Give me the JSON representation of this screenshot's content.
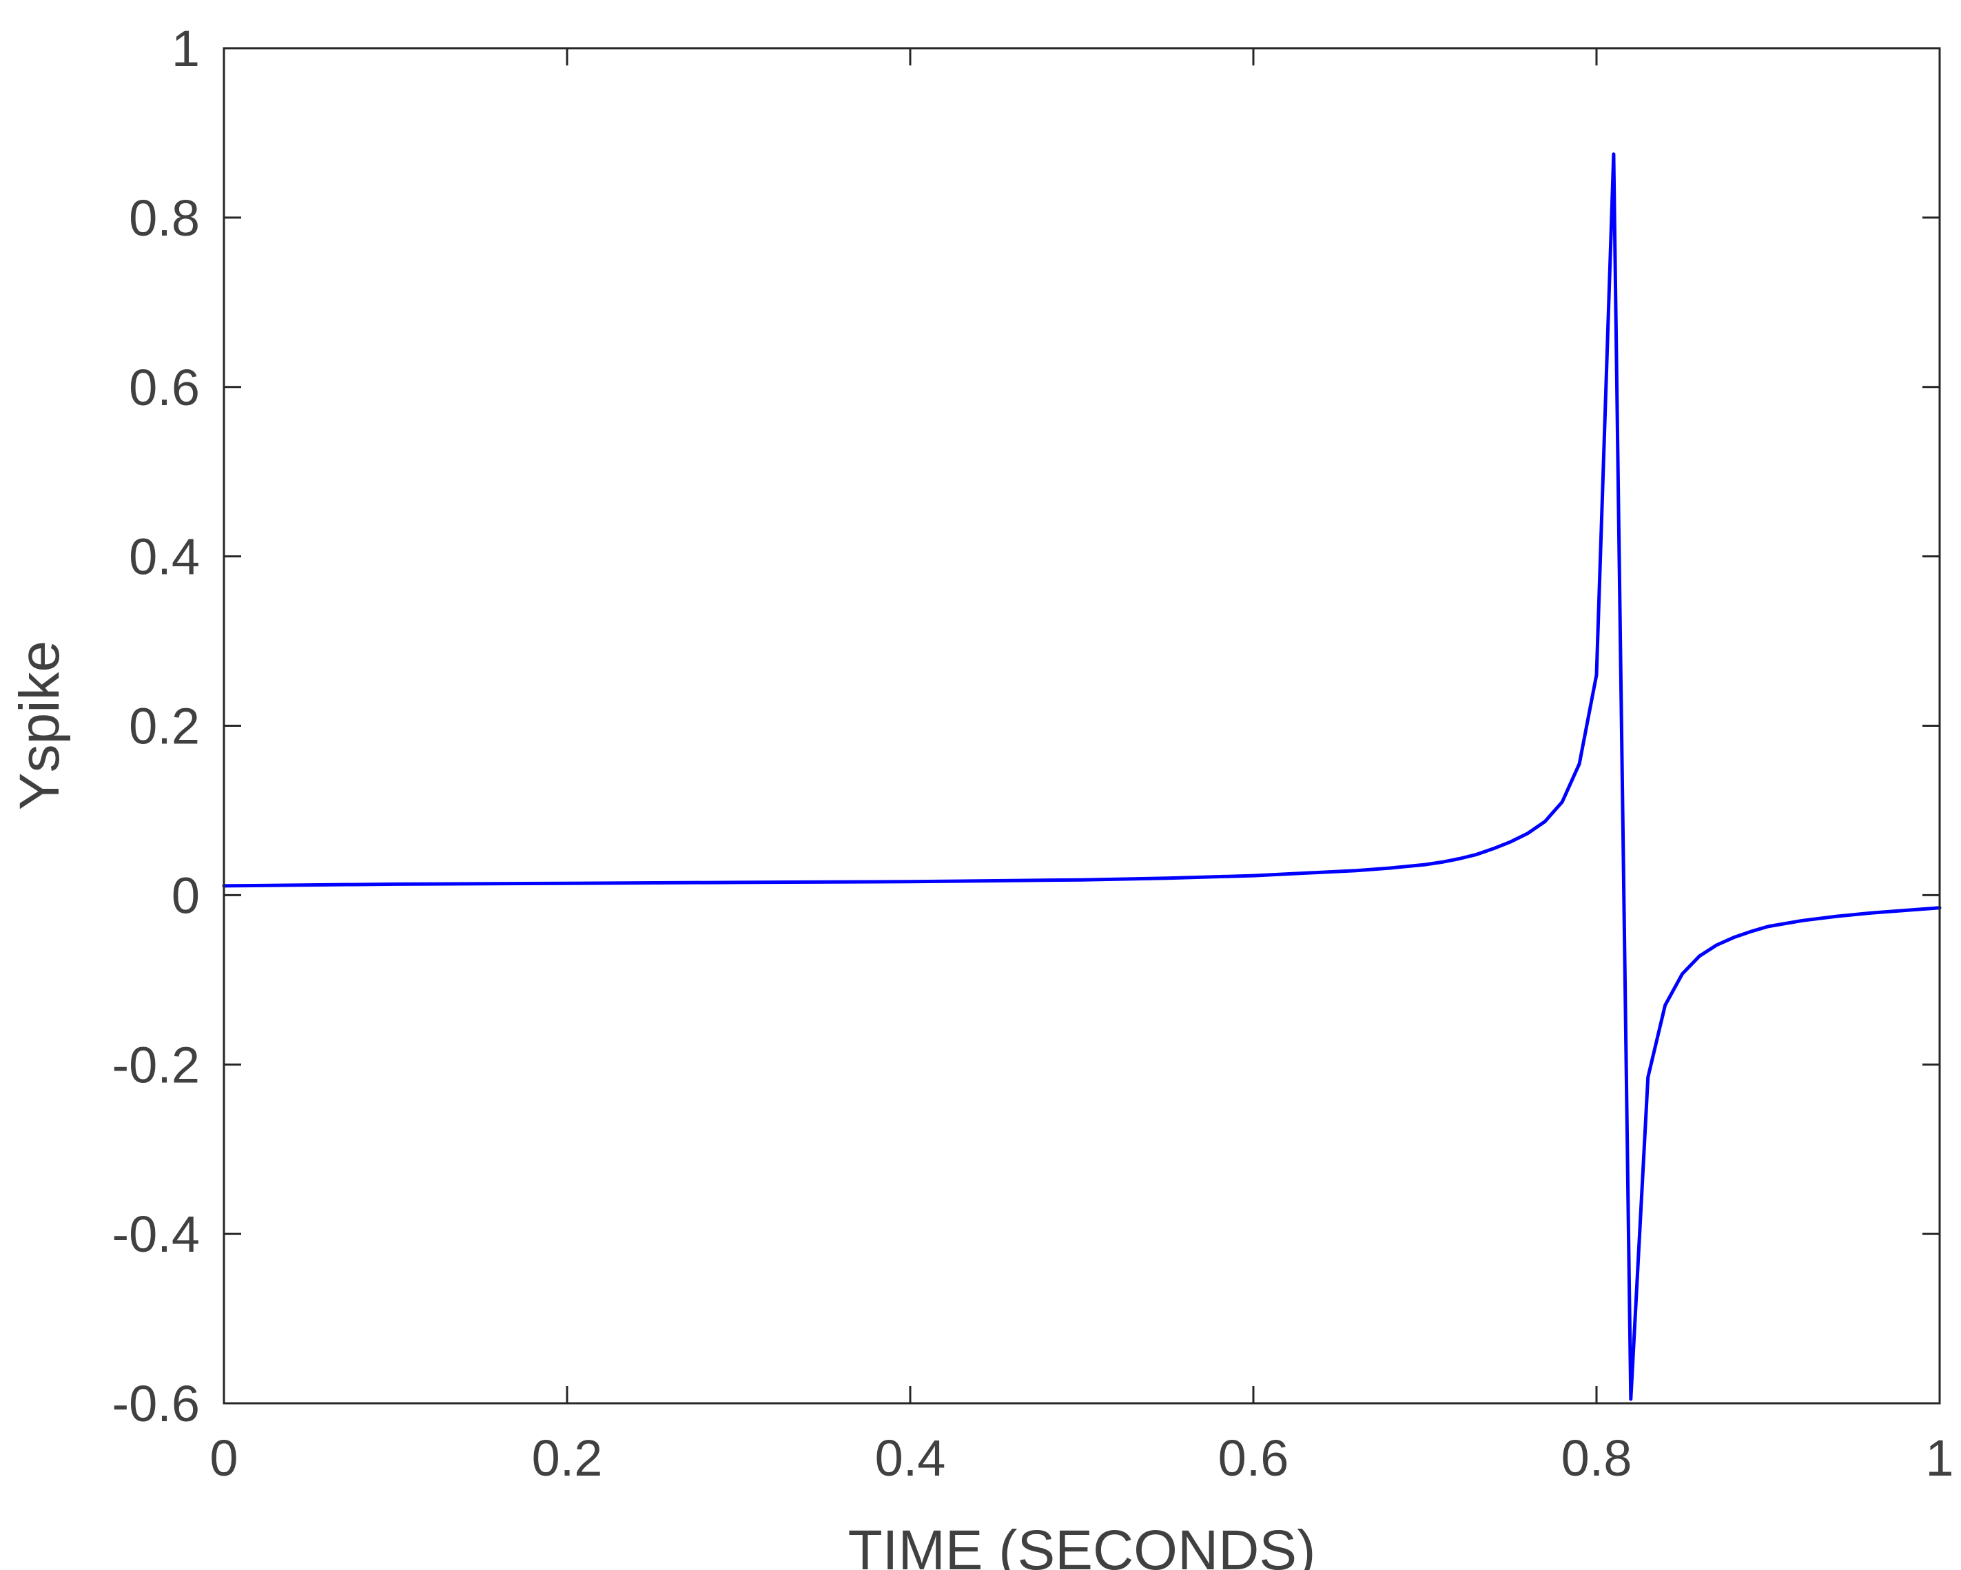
{
  "chart_data": {
    "type": "line",
    "title": "",
    "xlabel": "TIME (SECONDS)",
    "ylabel": "Yspike",
    "xlim": [
      0,
      1
    ],
    "ylim": [
      -0.6,
      1
    ],
    "xticks": [
      0,
      0.2,
      0.4,
      0.6,
      0.8,
      1
    ],
    "xtick_labels": [
      "0",
      "0.2",
      "0.4",
      "0.6",
      "0.8",
      "1"
    ],
    "yticks": [
      -0.6,
      -0.4,
      -0.2,
      0,
      0.2,
      0.4,
      0.6,
      0.8,
      1
    ],
    "ytick_labels": [
      "-0.6",
      "-0.4",
      "-0.2",
      "0",
      "0.2",
      "0.4",
      "0.6",
      "0.8",
      "1"
    ],
    "grid": false,
    "line_color": "#0000ff",
    "axis_color": "#262626",
    "series": [
      {
        "x": [
          0,
          0.1,
          0.2,
          0.3,
          0.4,
          0.45,
          0.5,
          0.55,
          0.6,
          0.63,
          0.66,
          0.68,
          0.7,
          0.71,
          0.72,
          0.73,
          0.74,
          0.75,
          0.76,
          0.77,
          0.78,
          0.79,
          0.8,
          0.81,
          0.82,
          0.83,
          0.84,
          0.85,
          0.86,
          0.87,
          0.88,
          0.89,
          0.9,
          0.92,
          0.94,
          0.96,
          0.98,
          1.0
        ],
        "y": [
          0.011,
          0.013,
          0.014,
          0.015,
          0.016,
          0.017,
          0.018,
          0.02,
          0.023,
          0.026,
          0.029,
          0.032,
          0.036,
          0.039,
          0.043,
          0.048,
          0.055,
          0.063,
          0.073,
          0.087,
          0.11,
          0.155,
          0.26,
          0.875,
          -0.595,
          -0.215,
          -0.13,
          -0.093,
          -0.072,
          -0.059,
          -0.05,
          -0.043,
          -0.037,
          -0.03,
          -0.025,
          -0.021,
          -0.018,
          -0.015
        ]
      }
    ]
  }
}
